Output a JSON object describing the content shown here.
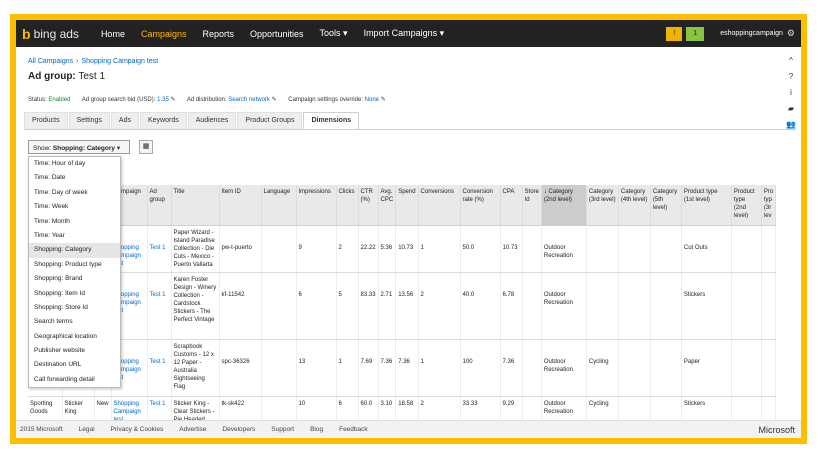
{
  "logo": {
    "glyph": "b",
    "text": "bing ads"
  },
  "nav": [
    {
      "label": "Home",
      "active": false
    },
    {
      "label": "Campaigns",
      "active": true
    },
    {
      "label": "Reports",
      "active": false
    },
    {
      "label": "Opportunities",
      "active": false
    },
    {
      "label": "Tools ▾",
      "active": false
    },
    {
      "label": "Import Campaigns ▾",
      "active": false
    }
  ],
  "header_right": {
    "alert": "!",
    "notif": "1",
    "account": "eshoppingcampaign"
  },
  "breadcrumb": {
    "root": "All Campaigns",
    "sep": "›",
    "leaf": "Shopping Campaign test"
  },
  "adgroup": {
    "prefix": "Ad group:",
    "name": "Test 1"
  },
  "status": {
    "status_label": "Status:",
    "status_value": "Enabled",
    "bid_label": "Ad group search bid (USD):",
    "bid_value": "1.35",
    "dist_label": "Ad distribution:",
    "dist_value": "Search network",
    "override_label": "Campaign settings override:",
    "override_value": "None"
  },
  "tabs": [
    "Products",
    "Settings",
    "Ads",
    "Keywords",
    "Audiences",
    "Product Groups",
    "Dimensions"
  ],
  "show": {
    "prefix": "Show:",
    "value": "Shopping: Category"
  },
  "dropdown": [
    "Time: Hour of day",
    "Time: Date",
    "Time: Day of week",
    "Time: Week",
    "Time: Month",
    "Time: Year",
    "Shopping: Category",
    "Shopping: Product type",
    "Shopping: Brand",
    "Shopping: Item Id",
    "Shopping: Store Id",
    "Search terms",
    "Geographical location",
    "Publisher website",
    "Destination URL",
    "Call forwarding detail"
  ],
  "table": {
    "headers": [
      "",
      "",
      "ion",
      "Campaign",
      "Ad group",
      "Title",
      "Item ID",
      "Language",
      "Impressions",
      "Clicks",
      "CTR (%)",
      "Avg. CPC",
      "Spend",
      "Conversions",
      "Conversion rate (%)",
      "CPA",
      "Store Id",
      "↓ Category (2nd level)",
      "Category (3rd level)",
      "Category (4th level)",
      "Category (5th level)",
      "Product type (1st level)",
      "Product type (2nd level)",
      "Pro typ (3r lev"
    ],
    "rows": [
      [
        "",
        "",
        "",
        "Shopping Campaign test",
        "Test 1",
        "Paper Wizard - Island Paradise Collection - Die Cuts - Mexico - Puerto Vallarta",
        "pw-t-puerto",
        "",
        "9",
        "2",
        "22.22",
        "5.36",
        "10.73",
        "1",
        "50.0",
        "10.73",
        "",
        "Outdoor Recreation",
        "",
        "",
        "",
        "Cut Outs",
        "",
        ""
      ],
      [
        "",
        "",
        "",
        "Shopping Campaign test",
        "Test 1",
        "Karen Foster Design - Winery Collection - Cardstock Stickers - The Perfect Vintage",
        "kf-11542",
        "",
        "6",
        "5",
        "83.33",
        "2.71",
        "13.56",
        "2",
        "40.0",
        "6.78",
        "",
        "Outdoor Recreation",
        "",
        "",
        "",
        "Stickers",
        "",
        ""
      ],
      [
        "",
        "",
        "",
        "Shopping Campaign test",
        "Test 1",
        "Scrapbook Customs - 12 x 12 Paper - Australia Sightseeing Flag",
        "spc-36326",
        "",
        "13",
        "1",
        "7.69",
        "7.36",
        "7.36",
        "1",
        "100",
        "7.36",
        "",
        "Outdoor Recreation",
        "Cycling",
        "",
        "",
        "Paper",
        "",
        ""
      ],
      [
        "Sporting Goods",
        "Sticker King",
        "New",
        "Shopping Campaign test",
        "Test 1",
        "Sticker King - Clear Stickers - Pie Headed",
        "tk-sk422",
        "",
        "10",
        "6",
        "60.0",
        "3.10",
        "18.58",
        "2",
        "33.33",
        "9.29",
        "",
        "Outdoor Recreation",
        "Cycling",
        "",
        "",
        "Stickers",
        "",
        ""
      ]
    ]
  },
  "side_icons": [
    "^",
    "?",
    "i",
    "▰",
    "👥"
  ],
  "footer": {
    "links": [
      "2015 Microsoft",
      "Legal",
      "Privacy & Cookies",
      "Advertise",
      "Developers",
      "Support",
      "Blog",
      "Feedback"
    ],
    "brand": "Microsoft"
  },
  "colors": {
    "frame": "#ffbf00",
    "nav_bg": "#222222",
    "accent": "#ffb900",
    "link": "#0066cc"
  }
}
